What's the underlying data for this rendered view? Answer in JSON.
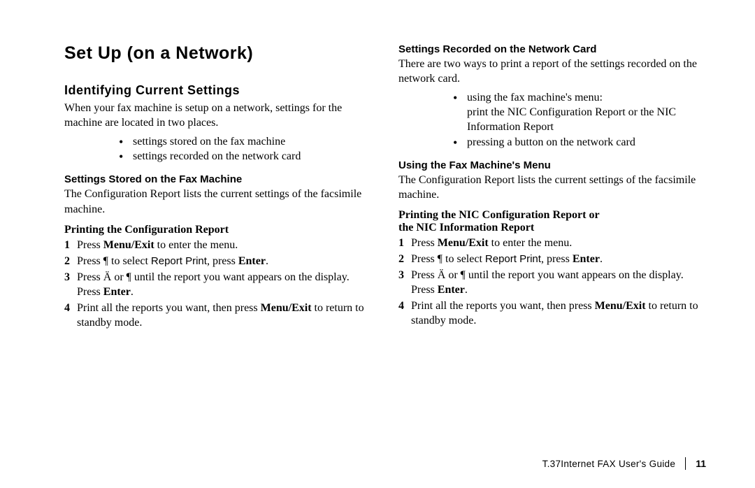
{
  "left": {
    "title": "Set Up (on a Network)",
    "h2": "Identifying Current Settings",
    "intro": "When your fax machine is setup on a network, settings for the machine are located in two places.",
    "bullets": [
      "settings stored on the fax machine",
      "settings recorded on the network card"
    ],
    "h3": "Settings Stored on the Fax Machine",
    "p1": "The Configuration Report lists the current settings of the facsimile machine.",
    "h4": "Printing the Configuration Report",
    "steps": {
      "s1a": "Press ",
      "s1b": "Menu/Exit",
      "s1c": " to enter the menu.",
      "s2a": "Press  ¶  to select ",
      "s2b": "Report Print",
      "s2c": ", press ",
      "s2d": "Enter",
      "s2e": ".",
      "s3a": "Press  Ä  or ¶   until the report you want appears on the display. Press ",
      "s3b": "Enter",
      "s3c": ".",
      "s4a": "Print all the reports you want, then press ",
      "s4b": "Menu/Exit",
      "s4c": " to return to standby mode."
    }
  },
  "right": {
    "h3a": "Settings Recorded on the Network Card",
    "p1": "There are two ways to print a report of the settings recorded on the network card.",
    "bullets": {
      "b1a": "using the fax machine's menu:",
      "b1b": "print the NIC Configuration Report or the NIC Information Report",
      "b2": "pressing a button on the network card"
    },
    "h3b": "Using the Fax Machine's Menu",
    "p2": "The Configuration Report lists the current settings of the facsimile machine.",
    "h4a": "Printing the NIC Configuration Report or",
    "h4b": "the NIC Information Report",
    "steps": {
      "s1a": "Press ",
      "s1b": "Menu/Exit",
      "s1c": " to enter the menu.",
      "s2a": "Press  ¶  to select ",
      "s2b": "Report Print",
      "s2c": ", press ",
      "s2d": "Enter",
      "s2e": ".",
      "s3a": "Press  Ä  or ¶   until the report you want appears on the display. Press ",
      "s3b": "Enter",
      "s3c": ".",
      "s4a": "Print all the reports you want, then press ",
      "s4b": "Menu/Exit",
      "s4c": " to return to standby mode."
    }
  },
  "footer": {
    "guide": "T.37Internet FAX User's Guide",
    "page": "11"
  }
}
